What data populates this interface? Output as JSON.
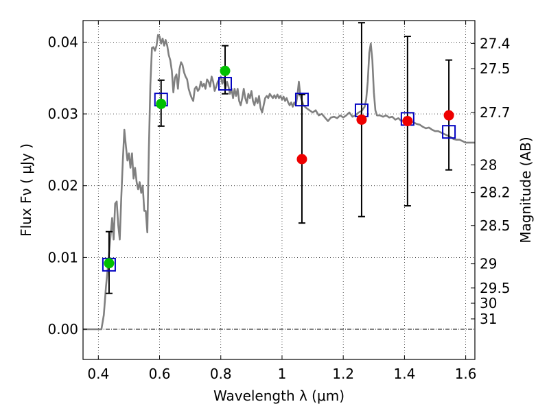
{
  "chart_data": {
    "type": "scatter",
    "xlabel": "Wavelength  λ (μm)",
    "ylabel": "Flux  Fν  ( μJy )",
    "y2label": "Magnitude (AB)",
    "xlim": [
      0.35,
      1.63
    ],
    "ylim": [
      -0.0042,
      0.043
    ],
    "grid": true,
    "x_ticks": [
      {
        "value": 0.4,
        "label": "0.4"
      },
      {
        "value": 0.6,
        "label": "0.6"
      },
      {
        "value": 0.8,
        "label": "0.8"
      },
      {
        "value": 1.0,
        "label": "1"
      },
      {
        "value": 1.2,
        "label": "1.2"
      },
      {
        "value": 1.4,
        "label": "1.4"
      },
      {
        "value": 1.6,
        "label": "1.6"
      }
    ],
    "y_ticks": [
      {
        "value": 0.0,
        "label": "0.00"
      },
      {
        "value": 0.01,
        "label": "0.01"
      },
      {
        "value": 0.02,
        "label": "0.02"
      },
      {
        "value": 0.03,
        "label": "0.03"
      },
      {
        "value": 0.04,
        "label": "0.04"
      }
    ],
    "mag_ticks": [
      {
        "value": 27.4,
        "label": "27.4"
      },
      {
        "value": 27.5,
        "label": "27.5"
      },
      {
        "value": 27.7,
        "label": "27.7"
      },
      {
        "value": 28,
        "label": "28"
      },
      {
        "value": 28.2,
        "label": "28.2"
      },
      {
        "value": 28.5,
        "label": "28.5"
      },
      {
        "value": 29,
        "label": "29"
      },
      {
        "value": 29.5,
        "label": "29.5"
      },
      {
        "value": 30,
        "label": "30"
      },
      {
        "value": 31,
        "label": "31"
      }
    ],
    "template_spectrum": {
      "color": "#808080",
      "points": [
        [
          0.35,
          0.0
        ],
        [
          0.41,
          0.0
        ],
        [
          0.418,
          0.002
        ],
        [
          0.425,
          0.006
        ],
        [
          0.432,
          0.009
        ],
        [
          0.44,
          0.013
        ],
        [
          0.445,
          0.0155
        ],
        [
          0.45,
          0.0125
        ],
        [
          0.455,
          0.0175
        ],
        [
          0.46,
          0.0178
        ],
        [
          0.465,
          0.0145
        ],
        [
          0.47,
          0.0125
        ],
        [
          0.475,
          0.0185
        ],
        [
          0.48,
          0.0235
        ],
        [
          0.485,
          0.0278
        ],
        [
          0.49,
          0.0255
        ],
        [
          0.495,
          0.0235
        ],
        [
          0.5,
          0.0245
        ],
        [
          0.505,
          0.0225
        ],
        [
          0.51,
          0.0245
        ],
        [
          0.515,
          0.021
        ],
        [
          0.52,
          0.0225
        ],
        [
          0.525,
          0.0205
        ],
        [
          0.53,
          0.0195
        ],
        [
          0.535,
          0.0205
        ],
        [
          0.54,
          0.019
        ],
        [
          0.545,
          0.02
        ],
        [
          0.55,
          0.0165
        ],
        [
          0.555,
          0.0165
        ],
        [
          0.56,
          0.0135
        ],
        [
          0.565,
          0.025
        ],
        [
          0.57,
          0.034
        ],
        [
          0.575,
          0.0392
        ],
        [
          0.58,
          0.0393
        ],
        [
          0.585,
          0.0388
        ],
        [
          0.59,
          0.0395
        ],
        [
          0.595,
          0.041
        ],
        [
          0.6,
          0.0408
        ],
        [
          0.605,
          0.0398
        ],
        [
          0.61,
          0.0405
        ],
        [
          0.615,
          0.0395
        ],
        [
          0.62,
          0.0403
        ],
        [
          0.625,
          0.0395
        ],
        [
          0.63,
          0.0382
        ],
        [
          0.635,
          0.0375
        ],
        [
          0.64,
          0.036
        ],
        [
          0.645,
          0.033
        ],
        [
          0.65,
          0.035
        ],
        [
          0.655,
          0.0355
        ],
        [
          0.66,
          0.0335
        ],
        [
          0.665,
          0.0362
        ],
        [
          0.67,
          0.0372
        ],
        [
          0.675,
          0.0368
        ],
        [
          0.68,
          0.0358
        ],
        [
          0.685,
          0.0352
        ],
        [
          0.69,
          0.0348
        ],
        [
          0.695,
          0.0335
        ],
        [
          0.7,
          0.0328
        ],
        [
          0.705,
          0.0322
        ],
        [
          0.71,
          0.0318
        ],
        [
          0.715,
          0.0335
        ],
        [
          0.72,
          0.0338
        ],
        [
          0.725,
          0.0332
        ],
        [
          0.73,
          0.0335
        ],
        [
          0.735,
          0.0345
        ],
        [
          0.74,
          0.0338
        ],
        [
          0.745,
          0.0342
        ],
        [
          0.75,
          0.0335
        ],
        [
          0.755,
          0.0348
        ],
        [
          0.76,
          0.0345
        ],
        [
          0.765,
          0.0338
        ],
        [
          0.77,
          0.0352
        ],
        [
          0.775,
          0.0345
        ],
        [
          0.78,
          0.0332
        ],
        [
          0.785,
          0.0338
        ],
        [
          0.79,
          0.0345
        ],
        [
          0.795,
          0.0348
        ],
        [
          0.8,
          0.0352
        ],
        [
          0.805,
          0.0342
        ],
        [
          0.81,
          0.035
        ],
        [
          0.815,
          0.0335
        ],
        [
          0.82,
          0.0345
        ],
        [
          0.825,
          0.0338
        ],
        [
          0.83,
          0.0328
        ],
        [
          0.835,
          0.0335
        ],
        [
          0.84,
          0.0322
        ],
        [
          0.845,
          0.0335
        ],
        [
          0.85,
          0.0325
        ],
        [
          0.855,
          0.0335
        ],
        [
          0.86,
          0.0318
        ],
        [
          0.865,
          0.0312
        ],
        [
          0.87,
          0.0322
        ],
        [
          0.875,
          0.0335
        ],
        [
          0.88,
          0.0322
        ],
        [
          0.885,
          0.0315
        ],
        [
          0.89,
          0.0328
        ],
        [
          0.895,
          0.0322
        ],
        [
          0.9,
          0.0332
        ],
        [
          0.905,
          0.0318
        ],
        [
          0.91,
          0.0312
        ],
        [
          0.915,
          0.0322
        ],
        [
          0.92,
          0.0315
        ],
        [
          0.925,
          0.0325
        ],
        [
          0.93,
          0.0308
        ],
        [
          0.935,
          0.0302
        ],
        [
          0.94,
          0.0312
        ],
        [
          0.945,
          0.0322
        ],
        [
          0.95,
          0.0325
        ],
        [
          0.955,
          0.0322
        ],
        [
          0.96,
          0.0328
        ],
        [
          0.965,
          0.0325
        ],
        [
          0.97,
          0.0322
        ],
        [
          0.975,
          0.0326
        ],
        [
          0.98,
          0.0322
        ],
        [
          0.985,
          0.0327
        ],
        [
          0.99,
          0.0322
        ],
        [
          0.995,
          0.0325
        ],
        [
          1.0,
          0.032
        ],
        [
          1.005,
          0.0324
        ],
        [
          1.01,
          0.0318
        ],
        [
          1.015,
          0.0322
        ],
        [
          1.02,
          0.0316
        ],
        [
          1.025,
          0.0312
        ],
        [
          1.03,
          0.0316
        ],
        [
          1.035,
          0.031
        ],
        [
          1.04,
          0.0316
        ],
        [
          1.045,
          0.0312
        ],
        [
          1.05,
          0.0325
        ],
        [
          1.055,
          0.0345
        ],
        [
          1.06,
          0.0325
        ],
        [
          1.065,
          0.0318
        ],
        [
          1.07,
          0.0312
        ],
        [
          1.08,
          0.0308
        ],
        [
          1.09,
          0.0305
        ],
        [
          1.1,
          0.0302
        ],
        [
          1.11,
          0.0305
        ],
        [
          1.12,
          0.0298
        ],
        [
          1.13,
          0.03
        ],
        [
          1.14,
          0.0295
        ],
        [
          1.15,
          0.029
        ],
        [
          1.16,
          0.0295
        ],
        [
          1.17,
          0.0296
        ],
        [
          1.18,
          0.0294
        ],
        [
          1.19,
          0.0298
        ],
        [
          1.2,
          0.0295
        ],
        [
          1.21,
          0.0298
        ],
        [
          1.22,
          0.0302
        ],
        [
          1.23,
          0.0296
        ],
        [
          1.24,
          0.0298
        ],
        [
          1.25,
          0.0302
        ],
        [
          1.26,
          0.0304
        ],
        [
          1.27,
          0.031
        ],
        [
          1.275,
          0.032
        ],
        [
          1.28,
          0.0345
        ],
        [
          1.285,
          0.0385
        ],
        [
          1.29,
          0.0398
        ],
        [
          1.295,
          0.0375
        ],
        [
          1.3,
          0.033
        ],
        [
          1.305,
          0.0305
        ],
        [
          1.31,
          0.0298
        ],
        [
          1.32,
          0.0298
        ],
        [
          1.33,
          0.0296
        ],
        [
          1.34,
          0.0298
        ],
        [
          1.35,
          0.0295
        ],
        [
          1.36,
          0.0296
        ],
        [
          1.37,
          0.0292
        ],
        [
          1.38,
          0.0294
        ],
        [
          1.39,
          0.029
        ],
        [
          1.4,
          0.0292
        ],
        [
          1.41,
          0.0288
        ],
        [
          1.42,
          0.029
        ],
        [
          1.43,
          0.0288
        ],
        [
          1.44,
          0.0286
        ],
        [
          1.45,
          0.0285
        ],
        [
          1.46,
          0.0282
        ],
        [
          1.47,
          0.028
        ],
        [
          1.48,
          0.0281
        ],
        [
          1.49,
          0.0278
        ],
        [
          1.5,
          0.0276
        ],
        [
          1.51,
          0.0276
        ],
        [
          1.52,
          0.0274
        ],
        [
          1.53,
          0.0272
        ],
        [
          1.54,
          0.027
        ],
        [
          1.55,
          0.0268
        ],
        [
          1.56,
          0.0265
        ],
        [
          1.57,
          0.0264
        ],
        [
          1.58,
          0.0264
        ],
        [
          1.59,
          0.0262
        ],
        [
          1.6,
          0.026
        ],
        [
          1.63,
          0.026
        ]
      ]
    },
    "series": [
      {
        "marker": "square",
        "color": "#0000c0",
        "x": [
          0.435,
          0.605,
          0.814,
          1.065,
          1.26,
          1.41,
          1.545
        ],
        "y": [
          0.009,
          0.032,
          0.0342,
          0.032,
          0.0305,
          0.0293,
          0.0275
        ]
      },
      {
        "marker": "circle",
        "color": "#00c000",
        "x": [
          0.435,
          0.605,
          0.814
        ],
        "y": [
          0.0092,
          0.0314,
          0.036
        ],
        "yerr_low": [
          0.005,
          0.0283,
          0.0328
        ],
        "yerr_high": [
          0.0136,
          0.0347,
          0.0395
        ]
      },
      {
        "marker": "circle",
        "color": "#ee0000",
        "x": [
          1.065,
          1.26,
          1.41,
          1.545
        ],
        "y": [
          0.0237,
          0.0292,
          0.029,
          0.0298
        ],
        "yerr_low": [
          0.0148,
          0.0157,
          0.0172,
          0.0222
        ],
        "yerr_high": [
          0.0327,
          0.0427,
          0.0408,
          0.0375
        ]
      }
    ]
  }
}
